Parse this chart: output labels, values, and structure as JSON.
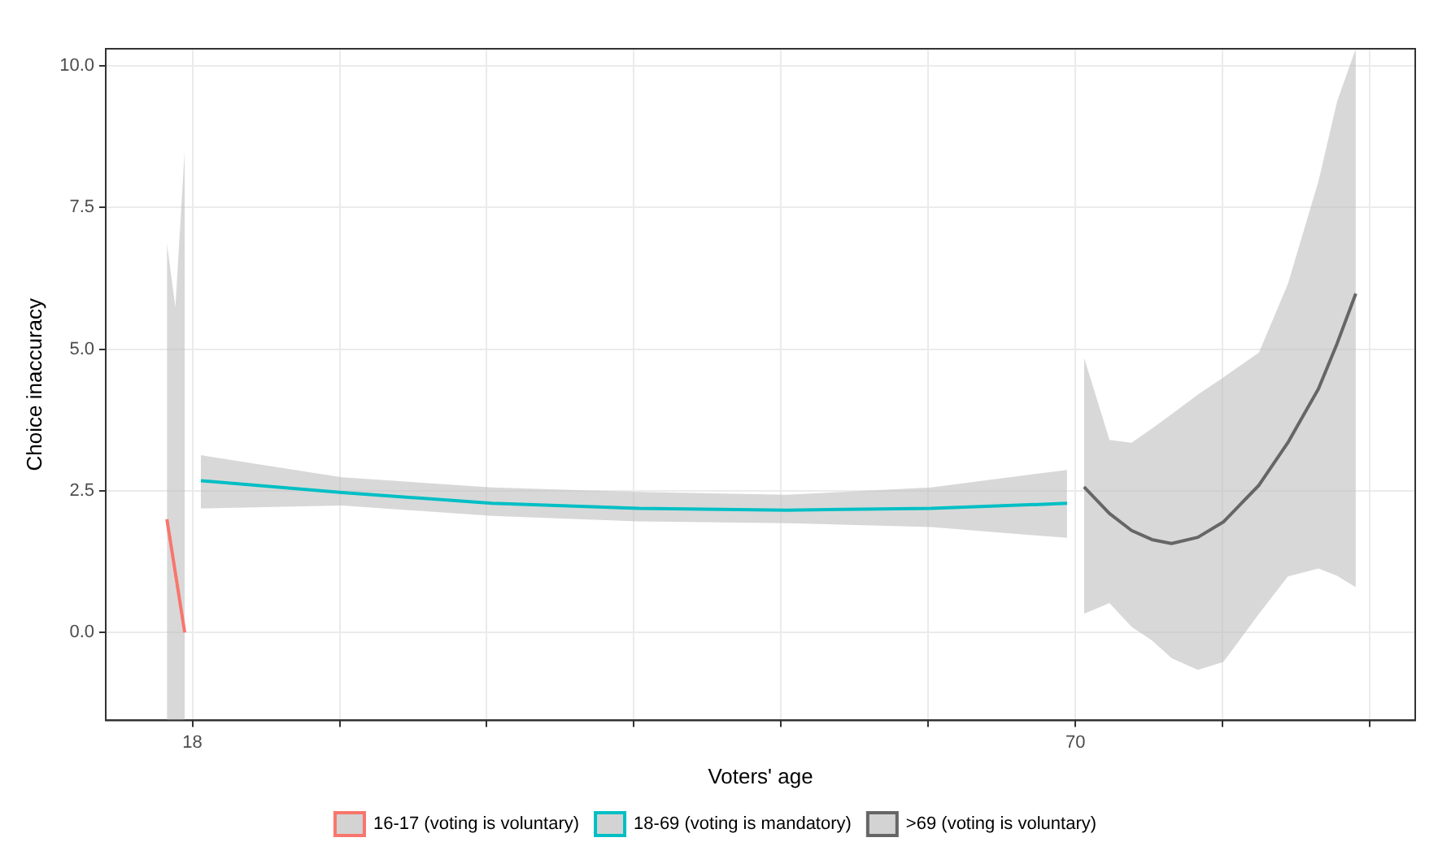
{
  "chart_data": {
    "type": "line",
    "xlabel": "Voters' age",
    "ylabel": "Choice inaccuracy",
    "xlim": [
      12.9,
      90.0
    ],
    "ylim": [
      -1.55,
      10.3
    ],
    "xticks": [
      18,
      {
        "value": 26.67,
        "label": null
      },
      {
        "value": 35.33,
        "label": null
      },
      {
        "value": 44,
        "label": null
      },
      {
        "value": 52.67,
        "label": null
      },
      {
        "value": 61.33,
        "label": null
      },
      70,
      {
        "value": 78.67,
        "label": null
      },
      {
        "value": 87.33,
        "label": null
      }
    ],
    "yticks": [
      {
        "value": 0,
        "label": "0.0"
      },
      {
        "value": 2.5,
        "label": "2.5"
      },
      {
        "value": 5,
        "label": "5.0"
      },
      {
        "value": 7.5,
        "label": "7.5"
      },
      {
        "value": 10,
        "label": "10.0"
      }
    ],
    "grid": true,
    "legend": "bottom",
    "marker": "none",
    "line_style": "solid",
    "series": [
      {
        "name": "16-17 (voting is voluntary)",
        "color": "#f8766d",
        "x": [
          16.5,
          17.0,
          17.55
        ],
        "values": [
          2.0,
          1.05,
          0.0
        ],
        "upper": [
          6.87,
          5.74,
          8.52
        ],
        "lower": [
          -1.55,
          -1.55,
          -1.55
        ]
      },
      {
        "name": "18-69 (voting is mandatory)",
        "color": "#00bfc4",
        "x": [
          18.5,
          26.8,
          35.65,
          44.3,
          53.0,
          61.5,
          69.5
        ],
        "values": [
          2.68,
          2.47,
          2.28,
          2.19,
          2.16,
          2.19,
          2.28
        ],
        "upper": [
          3.13,
          2.74,
          2.56,
          2.48,
          2.43,
          2.56,
          2.87
        ],
        "lower": [
          2.19,
          2.24,
          2.06,
          1.96,
          1.93,
          1.86,
          1.67
        ]
      },
      {
        "name": ">69 (voting is voluntary)",
        "color": "#666666",
        "x": [
          70.5,
          72.0,
          73.3,
          74.5,
          75.65,
          77.2,
          78.7,
          80.8,
          82.5,
          84.3,
          85.4,
          86.5
        ],
        "values": [
          2.57,
          2.1,
          1.8,
          1.64,
          1.57,
          1.68,
          1.95,
          2.6,
          3.35,
          4.3,
          5.1,
          5.98
        ],
        "upper": [
          4.85,
          3.4,
          3.35,
          3.6,
          3.85,
          4.2,
          4.5,
          4.94,
          6.15,
          7.96,
          9.37,
          10.3
        ],
        "lower": [
          0.33,
          0.52,
          0.1,
          -0.14,
          -0.45,
          -0.66,
          -0.52,
          0.33,
          0.99,
          1.13,
          1.0,
          0.8
        ]
      }
    ]
  }
}
